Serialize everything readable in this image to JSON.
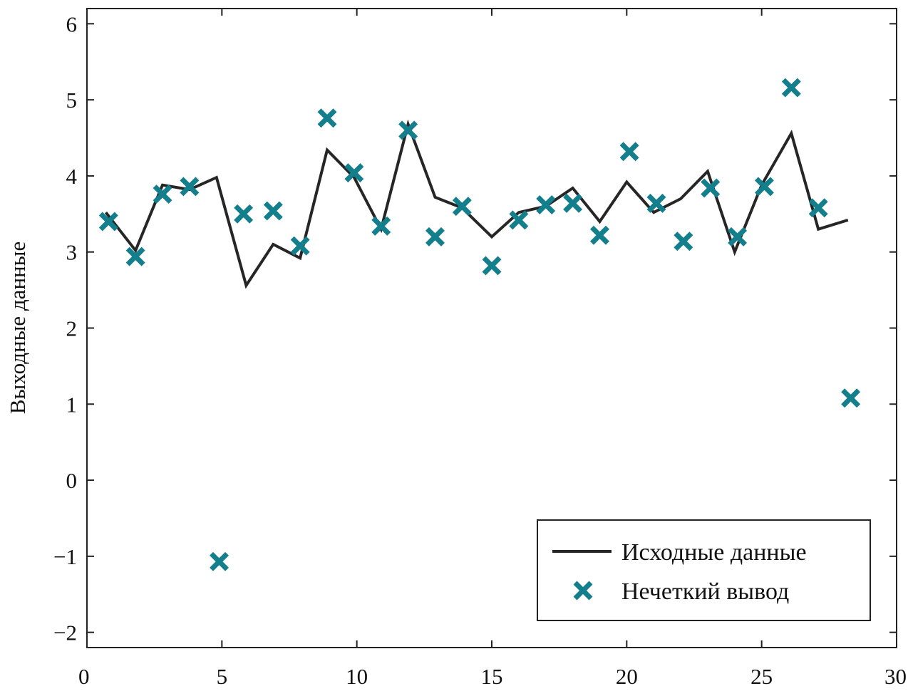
{
  "chart_data": {
    "type": "line",
    "title": "",
    "xlabel": "",
    "ylabel": "Выходные данные",
    "xlim": [
      0,
      30
    ],
    "ylim": [
      -2.2,
      6.2
    ],
    "x_ticks": [
      "0",
      "5",
      "10",
      "15",
      "20",
      "25",
      "30"
    ],
    "y_ticks": [
      "−2",
      "−1",
      "0",
      "1",
      "2",
      "3",
      "4",
      "5",
      "6"
    ],
    "grid": false,
    "legend_position": "lower-right",
    "series": [
      {
        "name": "Исходные данные",
        "kind": "line",
        "color": "#262626",
        "x": [
          0.7,
          1.8,
          2.8,
          3.8,
          4.8,
          5.9,
          6.9,
          7.9,
          8.9,
          9.9,
          10.9,
          11.9,
          12.9,
          13.9,
          15.0,
          16.0,
          17.0,
          18.0,
          19.0,
          20.0,
          21.0,
          22.0,
          23.0,
          24.0,
          25.0,
          26.1,
          27.1,
          28.2
        ],
        "y": [
          3.52,
          3.02,
          3.88,
          3.82,
          3.98,
          2.56,
          3.1,
          2.92,
          4.34,
          3.98,
          3.3,
          4.68,
          3.72,
          3.58,
          3.2,
          3.52,
          3.6,
          3.84,
          3.4,
          3.92,
          3.52,
          3.7,
          4.06,
          3.0,
          3.88,
          4.56,
          3.3,
          3.42
        ]
      },
      {
        "name": "Нечеткий вывод",
        "kind": "scatter",
        "marker": "x",
        "color": "#147f8c",
        "x": [
          0.8,
          1.8,
          2.8,
          3.8,
          4.9,
          5.8,
          6.9,
          7.9,
          8.9,
          9.9,
          10.9,
          11.9,
          12.9,
          13.9,
          15.0,
          16.0,
          17.0,
          18.0,
          19.0,
          20.1,
          21.1,
          22.1,
          23.1,
          24.1,
          25.1,
          26.1,
          27.1,
          28.3
        ],
        "y": [
          3.4,
          2.94,
          3.76,
          3.86,
          -1.07,
          3.5,
          3.54,
          3.08,
          4.76,
          4.04,
          3.34,
          4.6,
          3.2,
          3.6,
          2.82,
          3.42,
          3.62,
          3.64,
          3.22,
          4.32,
          3.64,
          3.14,
          3.84,
          3.2,
          3.86,
          5.16,
          3.58,
          1.08
        ]
      }
    ]
  }
}
